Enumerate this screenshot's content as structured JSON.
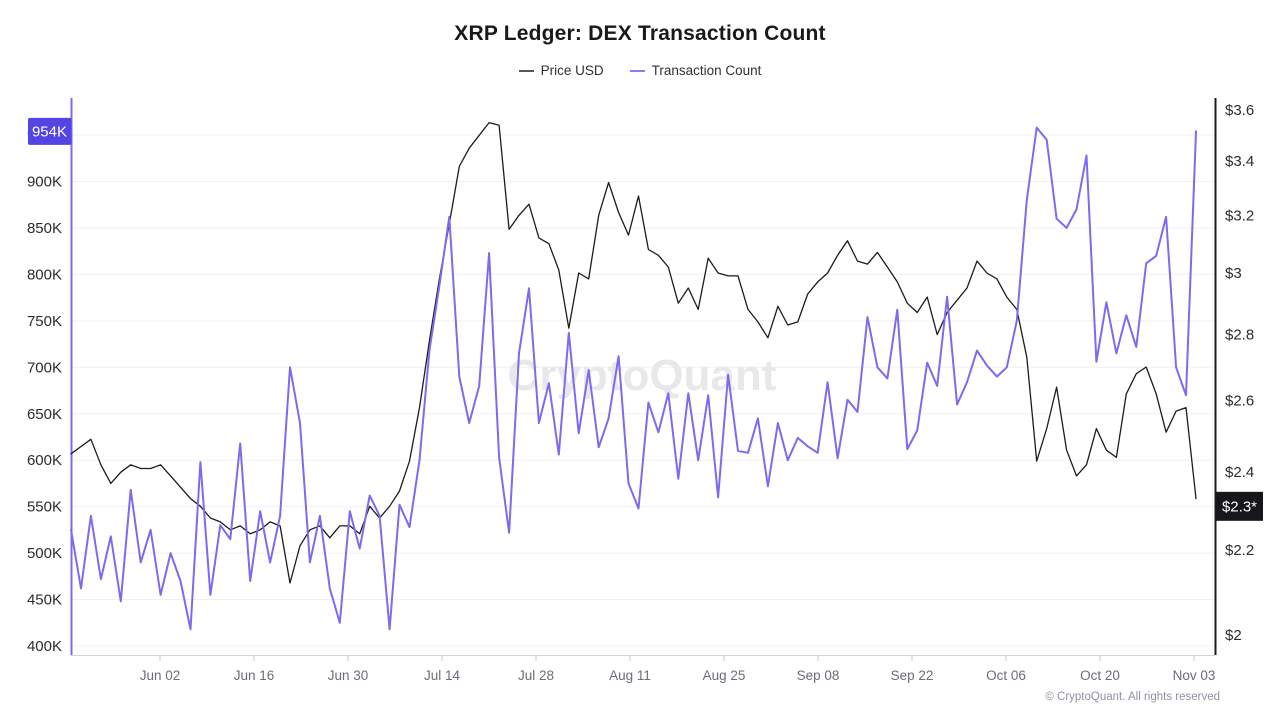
{
  "header": {
    "title": "XRP Ledger: DEX Transaction Count"
  },
  "legend": [
    {
      "label": "Price USD",
      "color": "#55565a"
    },
    {
      "label": "Transaction Count",
      "color": "#8b7cf3"
    }
  ],
  "watermark": {
    "text": "CryptoQuant",
    "color": "#e8e8eb"
  },
  "footer": {
    "copyright": "© CryptoQuant. All rights reserved"
  },
  "badges": {
    "last_tx_count": {
      "text": "954K",
      "value": 954,
      "bg": "#5444e4",
      "fg": "#ffffff"
    },
    "last_price": {
      "text": "$2.3*",
      "value": 2.31,
      "bg": "#17171b",
      "fg": "#ffffff"
    }
  },
  "chart_data": {
    "type": "line",
    "title": "XRP Ledger: DEX Transaction Count",
    "grid": "horizontal",
    "legend_position": "top",
    "x_axis": {
      "tick_labels": [
        "Jun 02",
        "Jun 16",
        "Jun 30",
        "Jul 14",
        "Jul 28",
        "Aug 11",
        "Aug 25",
        "Sep 08",
        "Sep 22",
        "Oct 06",
        "Oct 20",
        "Nov 03"
      ],
      "start_date": "May 20",
      "end_date": "Nov 03",
      "tick_interval_days": 14
    },
    "y_left_axis": {
      "series": "Transaction Count",
      "scale": "linear",
      "unit": "K",
      "ticks": [
        400,
        450,
        500,
        550,
        600,
        650,
        700,
        750,
        800,
        850,
        900,
        950
      ],
      "tick_labels": [
        "400K",
        "450K",
        "500K",
        "550K",
        "600K",
        "650K",
        "700K",
        "750K",
        "800K",
        "850K",
        "900K",
        "950K"
      ],
      "axis_line_color": "#7c6bef"
    },
    "y_right_axis": {
      "series": "Price USD",
      "scale": "log",
      "unit": "USD",
      "ticks": [
        2,
        2.2,
        2.4,
        2.6,
        2.8,
        3,
        3.2,
        3.4,
        3.6
      ],
      "tick_labels": [
        "$2",
        "$2.2",
        "$2.4",
        "$2.6",
        "$2.8",
        "$3",
        "$3.2",
        "$3.4",
        "$3.6"
      ],
      "axis_line_color": "#1c1c1e"
    },
    "series": [
      {
        "name": "Price USD",
        "axis": "right",
        "color": "#1c1c1e",
        "stroke_width": 1.3,
        "values": [
          2.45,
          2.47,
          2.49,
          2.42,
          2.37,
          2.4,
          2.42,
          2.41,
          2.41,
          2.42,
          2.39,
          2.36,
          2.33,
          2.31,
          2.28,
          2.27,
          2.25,
          2.26,
          2.24,
          2.25,
          2.27,
          2.26,
          2.12,
          2.21,
          2.25,
          2.26,
          2.23,
          2.26,
          2.26,
          2.24,
          2.31,
          2.28,
          2.31,
          2.35,
          2.43,
          2.58,
          2.78,
          2.98,
          3.17,
          3.38,
          3.45,
          3.5,
          3.55,
          3.54,
          3.15,
          3.2,
          3.24,
          3.12,
          3.1,
          3.01,
          2.82,
          3.0,
          2.98,
          3.2,
          3.32,
          3.21,
          3.13,
          3.27,
          3.08,
          3.06,
          3.02,
          2.9,
          2.95,
          2.88,
          3.05,
          3.0,
          2.99,
          2.99,
          2.88,
          2.84,
          2.79,
          2.89,
          2.83,
          2.84,
          2.93,
          2.97,
          3.0,
          3.06,
          3.11,
          3.04,
          3.03,
          3.07,
          3.02,
          2.97,
          2.9,
          2.87,
          2.92,
          2.8,
          2.87,
          2.91,
          2.95,
          3.04,
          3.0,
          2.98,
          2.92,
          2.88,
          2.73,
          2.43,
          2.52,
          2.64,
          2.46,
          2.39,
          2.42,
          2.52,
          2.46,
          2.44,
          2.62,
          2.68,
          2.7,
          2.62,
          2.51,
          2.57,
          2.58,
          2.33
        ]
      },
      {
        "name": "Transaction Count",
        "axis": "left",
        "color": "#7c6bef",
        "stroke_width": 2,
        "unit": "thousands",
        "values": [
          525,
          462,
          540,
          472,
          518,
          448,
          568,
          490,
          525,
          455,
          500,
          470,
          418,
          598,
          455,
          530,
          515,
          618,
          470,
          545,
          490,
          540,
          700,
          640,
          490,
          540,
          462,
          425,
          545,
          505,
          562,
          540,
          418,
          552,
          528,
          600,
          718,
          788,
          862,
          690,
          640,
          680,
          823,
          603,
          522,
          715,
          785,
          640,
          683,
          606,
          737,
          629,
          697,
          614,
          645,
          712,
          575,
          548,
          662,
          630,
          672,
          580,
          672,
          600,
          670,
          560,
          692,
          610,
          608,
          645,
          572,
          640,
          600,
          624,
          615,
          608,
          684,
          602,
          665,
          652,
          754,
          700,
          688,
          762,
          612,
          632,
          705,
          680,
          776,
          660,
          684,
          718,
          702,
          690,
          700,
          750,
          880,
          958,
          945,
          860,
          850,
          870,
          928,
          706,
          770,
          715,
          756,
          722,
          812,
          820,
          862,
          700,
          670,
          954
        ]
      }
    ],
    "annotations": {
      "last_transaction_count_label": "954K",
      "last_price_label": "$2.3*"
    }
  }
}
